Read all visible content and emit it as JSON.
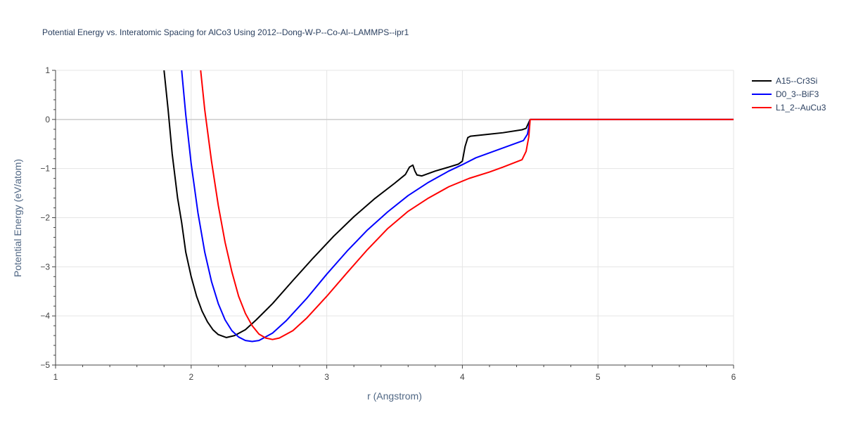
{
  "chart_data": {
    "type": "line",
    "title": "Potential Energy vs. Interatomic Spacing for AlCo3 Using 2012--Dong-W-P--Co-Al--LAMMPS--ipr1",
    "xlabel": "r (Angstrom)",
    "ylabel": "Potential Energy (eV/atom)",
    "xlim": [
      1,
      6
    ],
    "ylim": [
      -5,
      1
    ],
    "xticks": [
      1,
      2,
      3,
      4,
      5,
      6
    ],
    "yticks": [
      1,
      0,
      -1,
      -2,
      -3,
      -4,
      -5
    ],
    "ytick_labels": [
      "1",
      "0",
      "−1",
      "−2",
      "−3",
      "−4",
      "−5"
    ],
    "grid": true,
    "legend_position": "top-right",
    "series": [
      {
        "name": "A15--Cr3Si",
        "color": "#000000",
        "points": [
          [
            1.8,
            1.0
          ],
          [
            1.83,
            0.2
          ],
          [
            1.86,
            -0.7
          ],
          [
            1.9,
            -1.6
          ],
          [
            1.93,
            -2.1
          ],
          [
            1.96,
            -2.7
          ],
          [
            2.0,
            -3.2
          ],
          [
            2.04,
            -3.6
          ],
          [
            2.08,
            -3.9
          ],
          [
            2.12,
            -4.12
          ],
          [
            2.16,
            -4.28
          ],
          [
            2.2,
            -4.38
          ],
          [
            2.26,
            -4.44
          ],
          [
            2.32,
            -4.4
          ],
          [
            2.4,
            -4.28
          ],
          [
            2.48,
            -4.08
          ],
          [
            2.6,
            -3.75
          ],
          [
            2.75,
            -3.28
          ],
          [
            2.9,
            -2.82
          ],
          [
            3.05,
            -2.38
          ],
          [
            3.2,
            -1.98
          ],
          [
            3.35,
            -1.62
          ],
          [
            3.5,
            -1.3
          ],
          [
            3.58,
            -1.12
          ],
          [
            3.61,
            -0.97
          ],
          [
            3.635,
            -0.93
          ],
          [
            3.65,
            -1.05
          ],
          [
            3.665,
            -1.13
          ],
          [
            3.7,
            -1.15
          ],
          [
            3.8,
            -1.05
          ],
          [
            3.9,
            -0.97
          ],
          [
            3.97,
            -0.91
          ],
          [
            4.0,
            -0.85
          ],
          [
            4.02,
            -0.55
          ],
          [
            4.04,
            -0.37
          ],
          [
            4.06,
            -0.34
          ],
          [
            4.2,
            -0.3
          ],
          [
            4.3,
            -0.27
          ],
          [
            4.44,
            -0.21
          ],
          [
            4.47,
            -0.18
          ],
          [
            4.5,
            0.0
          ],
          [
            6.0,
            0.0
          ]
        ]
      },
      {
        "name": "D0_3--BiF3",
        "color": "#0000ff",
        "points": [
          [
            1.93,
            1.0
          ],
          [
            1.96,
            0.1
          ],
          [
            2.0,
            -0.9
          ],
          [
            2.05,
            -1.9
          ],
          [
            2.1,
            -2.7
          ],
          [
            2.15,
            -3.3
          ],
          [
            2.2,
            -3.75
          ],
          [
            2.25,
            -4.08
          ],
          [
            2.3,
            -4.3
          ],
          [
            2.35,
            -4.43
          ],
          [
            2.4,
            -4.5
          ],
          [
            2.45,
            -4.52
          ],
          [
            2.5,
            -4.5
          ],
          [
            2.6,
            -4.35
          ],
          [
            2.7,
            -4.1
          ],
          [
            2.85,
            -3.65
          ],
          [
            3.0,
            -3.15
          ],
          [
            3.15,
            -2.68
          ],
          [
            3.3,
            -2.25
          ],
          [
            3.45,
            -1.88
          ],
          [
            3.6,
            -1.55
          ],
          [
            3.75,
            -1.28
          ],
          [
            3.9,
            -1.05
          ],
          [
            4.0,
            -0.92
          ],
          [
            4.1,
            -0.78
          ],
          [
            4.25,
            -0.63
          ],
          [
            4.35,
            -0.53
          ],
          [
            4.45,
            -0.43
          ],
          [
            4.48,
            -0.3
          ],
          [
            4.5,
            0.0
          ],
          [
            6.0,
            0.0
          ]
        ]
      },
      {
        "name": "L1_2--AuCu3",
        "color": "#ff0000",
        "points": [
          [
            2.07,
            1.0
          ],
          [
            2.1,
            0.2
          ],
          [
            2.15,
            -0.85
          ],
          [
            2.2,
            -1.75
          ],
          [
            2.25,
            -2.5
          ],
          [
            2.3,
            -3.1
          ],
          [
            2.35,
            -3.6
          ],
          [
            2.4,
            -3.95
          ],
          [
            2.45,
            -4.2
          ],
          [
            2.5,
            -4.37
          ],
          [
            2.55,
            -4.45
          ],
          [
            2.6,
            -4.48
          ],
          [
            2.65,
            -4.45
          ],
          [
            2.75,
            -4.3
          ],
          [
            2.85,
            -4.05
          ],
          [
            3.0,
            -3.6
          ],
          [
            3.15,
            -3.12
          ],
          [
            3.3,
            -2.65
          ],
          [
            3.45,
            -2.22
          ],
          [
            3.6,
            -1.87
          ],
          [
            3.75,
            -1.6
          ],
          [
            3.9,
            -1.37
          ],
          [
            4.05,
            -1.2
          ],
          [
            4.2,
            -1.07
          ],
          [
            4.3,
            -0.97
          ],
          [
            4.44,
            -0.82
          ],
          [
            4.47,
            -0.65
          ],
          [
            4.49,
            -0.35
          ],
          [
            4.5,
            0.0
          ],
          [
            6.0,
            0.0
          ]
        ]
      }
    ]
  }
}
